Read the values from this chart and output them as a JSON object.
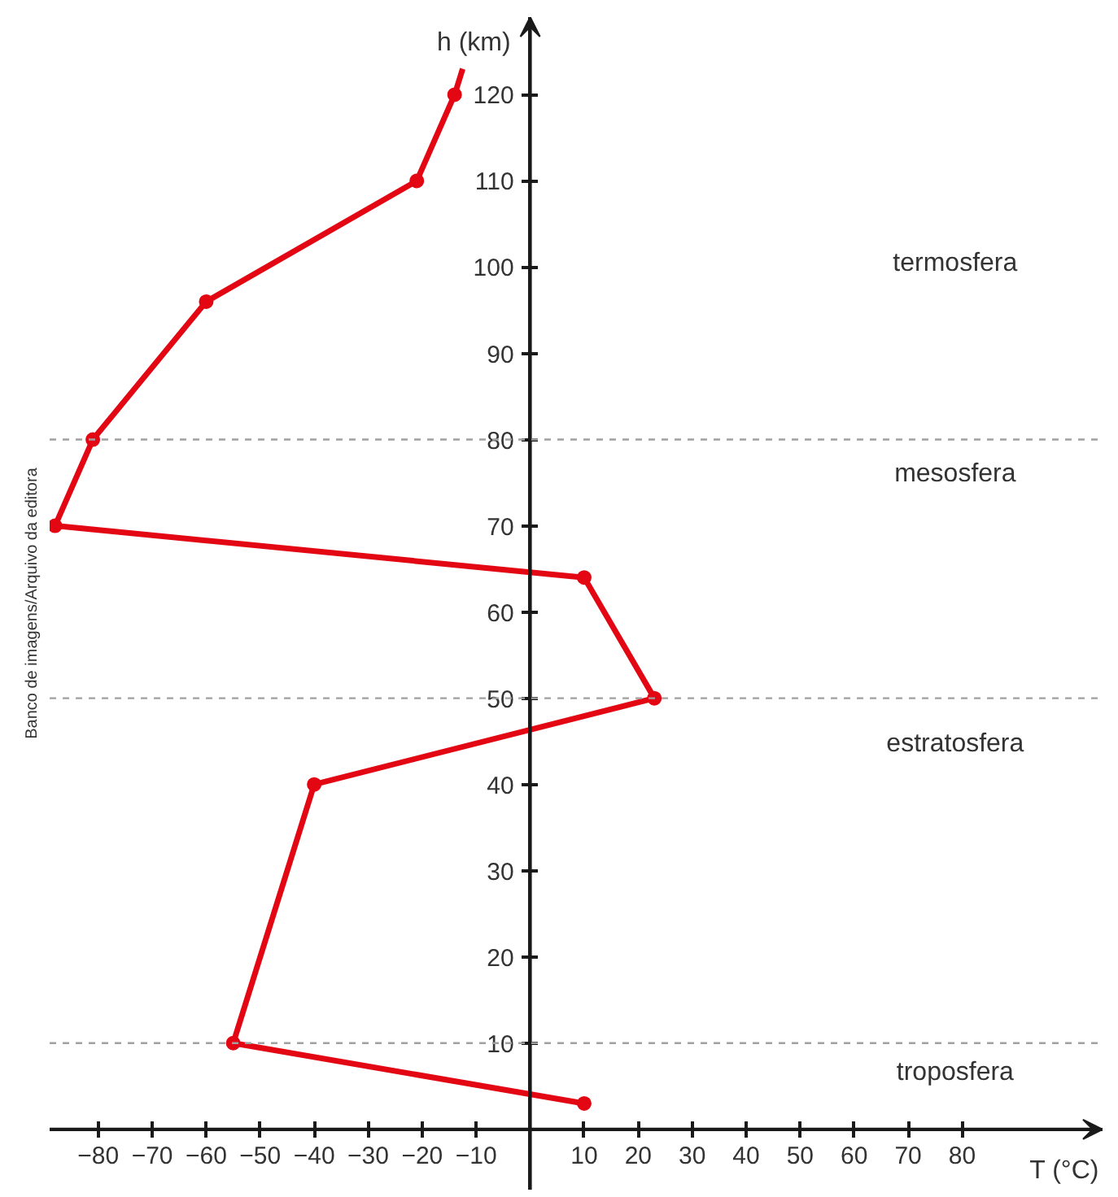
{
  "chart_data": {
    "type": "line",
    "xlabel": "T (°C)",
    "ylabel": "h (km)",
    "xlim": [
      -89,
      106
    ],
    "ylim": [
      -7,
      129
    ],
    "xticks": [
      -80,
      -70,
      -60,
      -50,
      -40,
      -30,
      -20,
      -10,
      10,
      20,
      30,
      40,
      50,
      60,
      70,
      80
    ],
    "yticks": [
      10,
      20,
      30,
      40,
      50,
      60,
      70,
      80,
      90,
      100,
      110,
      120
    ],
    "series": [
      {
        "color": "#e30613",
        "marker": "circle",
        "x": [
          10,
          -55,
          -40,
          23,
          10,
          -88,
          -81,
          -60,
          -21,
          -14
        ],
        "values": [
          3,
          10,
          40,
          50,
          64,
          70,
          80,
          96,
          110,
          120
        ]
      },
      {
        "color": "#e30613",
        "marker": "none",
        "x": [
          -14,
          -12.5
        ],
        "values": [
          120,
          123
        ]
      }
    ],
    "ref_lines": [
      {
        "axis": "y",
        "value": 10,
        "color": "#a0a0a0",
        "line_style": "dashed"
      },
      {
        "axis": "y",
        "value": 50,
        "color": "#a0a0a0",
        "line_style": "dashed"
      },
      {
        "axis": "y",
        "value": 80,
        "color": "#a0a0a0",
        "line_style": "dashed"
      }
    ],
    "annotations": [
      "termosfera",
      "mesosfera",
      "estratosfera",
      "troposfera",
      "Banco de imagens/Arquivo da editora"
    ]
  }
}
